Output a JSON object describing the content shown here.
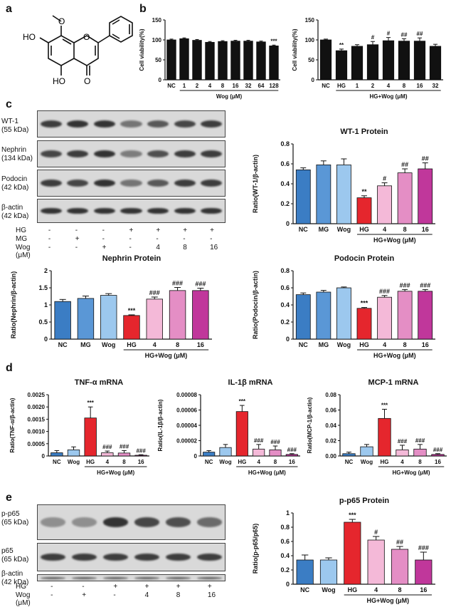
{
  "panels": {
    "a": "a",
    "b": "b",
    "c": "c",
    "d": "d",
    "e": "e"
  },
  "structure": {
    "labels": [
      "HO",
      "HO",
      "O",
      "O"
    ],
    "methoxy_label": "O"
  },
  "colors": {
    "NC": "#3b7dc4",
    "MG": "#5a97d6",
    "Wog": "#9cc8ee",
    "HG": "#e5262d",
    "HGWog4": "#f4b9d8",
    "HGWog8": "#e48ec5",
    "HGWog16": "#c0379b",
    "black": "#111111"
  },
  "blots_c": {
    "rows": [
      {
        "label": "WT-1\n(55 kDa)"
      },
      {
        "label": "Nephrin\n(134 kDa)"
      },
      {
        "label": "Podocin\n(42 kDa)"
      },
      {
        "label": "β-actin\n(42 kDa)"
      }
    ],
    "treatments": [
      {
        "label": "HG",
        "values": [
          "-",
          "-",
          "-",
          "+",
          "+",
          "+",
          "+"
        ]
      },
      {
        "label": "MG",
        "values": [
          "-",
          "+",
          "-",
          "-",
          "-",
          "-",
          "-"
        ]
      },
      {
        "label": "Wog (μM)",
        "values": [
          "-",
          "-",
          "+",
          "-",
          "4",
          "8",
          "16"
        ]
      }
    ]
  },
  "blots_e": {
    "rows": [
      {
        "label": "p-p65\n(65 kDa)"
      },
      {
        "label": "p65\n(65 kDa)"
      },
      {
        "label": "β-actin\n(42 kDa)"
      }
    ],
    "treatments": [
      {
        "label": "HG",
        "values": [
          "-",
          "-",
          "+",
          "+",
          "+",
          "+"
        ]
      },
      {
        "label": "Wog (μM)",
        "values": [
          "-",
          "+",
          "-",
          "4",
          "8",
          "16"
        ]
      }
    ]
  },
  "chart_data": [
    {
      "id": "b1",
      "type": "bar",
      "title": "",
      "ylabel": "Cell viability(%)",
      "ylim": [
        0,
        150
      ],
      "yticks": [
        0,
        50,
        100,
        150
      ],
      "categories": [
        "NC",
        "1",
        "2",
        "4",
        "8",
        "16",
        "32",
        "64",
        "128"
      ],
      "values": [
        100,
        103,
        99,
        94,
        96,
        97,
        97,
        95,
        85
      ],
      "errors": [
        2,
        2,
        2,
        2,
        2,
        2,
        2,
        2,
        2
      ],
      "colorKeys": [
        "black",
        "black",
        "black",
        "black",
        "black",
        "black",
        "black",
        "black",
        "black"
      ],
      "sig": [
        "",
        "",
        "",
        "",
        "",
        "",
        "",
        "",
        "***"
      ],
      "group": {
        "label": "Wog (μM)",
        "from": 1,
        "to": 8
      }
    },
    {
      "id": "b2",
      "type": "bar",
      "title": "",
      "ylabel": "Cell viability(%)",
      "ylim": [
        0,
        150
      ],
      "yticks": [
        0,
        50,
        100,
        150
      ],
      "categories": [
        "NC",
        "HG",
        "1",
        "2",
        "4",
        "8",
        "16",
        "32"
      ],
      "values": [
        100,
        73,
        84,
        88,
        98,
        97,
        97,
        84
      ],
      "errors": [
        2,
        4,
        4,
        8,
        8,
        6,
        8,
        5
      ],
      "colorKeys": [
        "black",
        "black",
        "black",
        "black",
        "black",
        "black",
        "black",
        "black"
      ],
      "sig": [
        "",
        "**",
        "",
        "#",
        "#",
        "##",
        "##",
        ""
      ],
      "group": {
        "label": "HG+Wog (μM)",
        "from": 1,
        "to": 7
      }
    },
    {
      "id": "wt1",
      "type": "bar",
      "title": "WT-1 Protein",
      "ylabel": "Ratio(WT-1/β-actin)",
      "ylim": [
        0,
        0.8
      ],
      "yticks": [
        0.0,
        0.2,
        0.4,
        0.6,
        0.8
      ],
      "categories": [
        "NC",
        "MG",
        "Wog",
        "HG",
        "4",
        "8",
        "16"
      ],
      "values": [
        0.54,
        0.59,
        0.59,
        0.26,
        0.38,
        0.51,
        0.55
      ],
      "errors": [
        0.02,
        0.04,
        0.06,
        0.02,
        0.03,
        0.04,
        0.06
      ],
      "colorKeys": [
        "NC",
        "MG",
        "Wog",
        "HG",
        "HGWog4",
        "HGWog8",
        "HGWog16"
      ],
      "sig": [
        "",
        "",
        "",
        "**",
        "#",
        "##",
        "##"
      ],
      "group": {
        "label": "HG+Wog (μM)",
        "from": 3,
        "to": 6
      }
    },
    {
      "id": "nephrin",
      "type": "bar",
      "title": "Nephrin Protein",
      "ylabel": "Ratio(Nephrin/β-actin)",
      "ylim": [
        0,
        2.0
      ],
      "yticks": [
        0.0,
        0.5,
        1.0,
        1.5,
        2.0
      ],
      "categories": [
        "NC",
        "MG",
        "Wog",
        "HG",
        "4",
        "8",
        "16"
      ],
      "values": [
        1.1,
        1.19,
        1.28,
        0.69,
        1.17,
        1.42,
        1.42
      ],
      "errors": [
        0.06,
        0.07,
        0.05,
        0.02,
        0.06,
        0.09,
        0.07
      ],
      "colorKeys": [
        "NC",
        "MG",
        "Wog",
        "HG",
        "HGWog4",
        "HGWog8",
        "HGWog16"
      ],
      "sig": [
        "",
        "",
        "",
        "***",
        "###",
        "###",
        "###"
      ],
      "group": {
        "label": "HG+Wog (μM)",
        "from": 3,
        "to": 6
      }
    },
    {
      "id": "podocin",
      "type": "bar",
      "title": "Podocin Protein",
      "ylabel": "Ratio(Podocin/β-actin)",
      "ylim": [
        0,
        0.8
      ],
      "yticks": [
        0.0,
        0.2,
        0.4,
        0.6,
        0.8
      ],
      "categories": [
        "NC",
        "MG",
        "Wog",
        "HG",
        "4",
        "8",
        "16"
      ],
      "values": [
        0.52,
        0.55,
        0.6,
        0.36,
        0.49,
        0.56,
        0.56
      ],
      "errors": [
        0.02,
        0.02,
        0.01,
        0.01,
        0.02,
        0.02,
        0.02
      ],
      "colorKeys": [
        "NC",
        "MG",
        "Wog",
        "HG",
        "HGWog4",
        "HGWog8",
        "HGWog16"
      ],
      "sig": [
        "",
        "",
        "",
        "***",
        "###",
        "###",
        "###"
      ],
      "group": {
        "label": "HG+Wog (μM)",
        "from": 3,
        "to": 6
      }
    },
    {
      "id": "tnf",
      "type": "bar",
      "title": "TNF-α mRNA",
      "ylabel": "Ratio(TNF-α/β-actin)",
      "ylim": [
        0,
        0.0025
      ],
      "yticks": [
        0,
        0.0005,
        0.001,
        0.0015,
        0.002,
        0.0025
      ],
      "ytickLabels": [
        "0",
        "0.0005",
        "0.0010",
        "0.0015",
        "0.0020",
        "0.0025"
      ],
      "categories": [
        "NC",
        "Wog",
        "HG",
        "4",
        "8",
        "16"
      ],
      "values": [
        0.00013,
        0.00025,
        0.00155,
        0.00013,
        0.00012,
        3e-05
      ],
      "errors": [
        9e-05,
        0.00012,
        0.00045,
        7e-05,
        0.0001,
        2e-05
      ],
      "colorKeys": [
        "NC",
        "Wog",
        "HG",
        "HGWog4",
        "HGWog8",
        "HGWog16"
      ],
      "sig": [
        "",
        "",
        "***",
        "###",
        "###",
        "###"
      ],
      "group": {
        "label": "HG+Wog (μM)",
        "from": 2,
        "to": 5
      }
    },
    {
      "id": "il1b",
      "type": "bar",
      "title": "IL-1β mRNA",
      "ylabel": "Ratio(IL-1β/β-actin)",
      "ylim": [
        0,
        8e-05
      ],
      "yticks": [
        0,
        2e-05,
        4e-05,
        6e-05,
        8e-05
      ],
      "ytickLabels": [
        "0",
        "0.00002",
        "0.00004",
        "0.00006",
        "0.00008"
      ],
      "categories": [
        "NC",
        "Wog",
        "HG",
        "4",
        "8",
        "16"
      ],
      "values": [
        5e-06,
        1.1e-05,
        5.8e-05,
        9e-06,
        8e-06,
        2e-06
      ],
      "errors": [
        2e-06,
        4e-06,
        8e-06,
        6e-06,
        5e-06,
        1e-06
      ],
      "colorKeys": [
        "NC",
        "Wog",
        "HG",
        "HGWog4",
        "HGWog8",
        "HGWog16"
      ],
      "sig": [
        "",
        "",
        "***",
        "###",
        "###",
        "###"
      ],
      "group": {
        "label": "HG+Wog (μM)",
        "from": 2,
        "to": 5
      }
    },
    {
      "id": "mcp1",
      "type": "bar",
      "title": "MCP-1 mRNA",
      "ylabel": "Ratio(MCP-1/β-actin)",
      "ylim": [
        0,
        0.08
      ],
      "yticks": [
        0,
        0.02,
        0.04,
        0.06,
        0.08
      ],
      "ytickLabels": [
        "0.00",
        "0.02",
        "0.04",
        "0.06",
        "0.08"
      ],
      "categories": [
        "NC",
        "Wog",
        "HG",
        "4",
        "8",
        "16"
      ],
      "values": [
        0.003,
        0.012,
        0.049,
        0.008,
        0.009,
        0.002
      ],
      "errors": [
        0.002,
        0.003,
        0.012,
        0.006,
        0.006,
        0.001
      ],
      "colorKeys": [
        "NC",
        "Wog",
        "HG",
        "HGWog4",
        "HGWog8",
        "HGWog16"
      ],
      "sig": [
        "",
        "",
        "***",
        "###",
        "###",
        "###"
      ],
      "group": {
        "label": "HG+Wog (μM)",
        "from": 2,
        "to": 5
      }
    },
    {
      "id": "pp65",
      "type": "bar",
      "title": "p-p65 Protein",
      "ylabel": "Ratio(p-p65/p65)",
      "ylim": [
        0,
        1.0
      ],
      "yticks": [
        0.0,
        0.2,
        0.4,
        0.6,
        0.8,
        1.0
      ],
      "categories": [
        "NC",
        "Wog",
        "HG",
        "4",
        "8",
        "16"
      ],
      "values": [
        0.34,
        0.34,
        0.87,
        0.62,
        0.49,
        0.34
      ],
      "errors": [
        0.07,
        0.03,
        0.04,
        0.05,
        0.04,
        0.11
      ],
      "colorKeys": [
        "NC",
        "Wog",
        "HG",
        "HGWog4",
        "HGWog8",
        "HGWog16"
      ],
      "sig": [
        "",
        "",
        "***",
        "#",
        "##",
        "###"
      ],
      "group": {
        "label": "HG+Wog (μM)",
        "from": 2,
        "to": 5
      }
    }
  ]
}
